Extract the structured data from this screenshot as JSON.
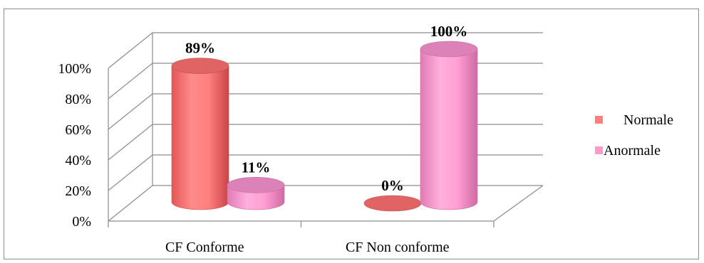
{
  "chart_data": {
    "type": "bar",
    "title": "",
    "xlabel": "",
    "ylabel": "",
    "ylim": [
      0,
      100
    ],
    "yticks": [
      "0%",
      "20%",
      "40%",
      "60%",
      "80%",
      "100%"
    ],
    "categories": [
      "CF Conforme",
      "CF Non conforme"
    ],
    "series": [
      {
        "name": "Normale",
        "values": [
          89,
          0
        ],
        "labels": [
          "89%",
          "0%"
        ],
        "color": "#FF7F7F"
      },
      {
        "name": "Anormale",
        "values": [
          11,
          100
        ],
        "labels": [
          "11%",
          "100%"
        ],
        "color": "#FF99CC"
      }
    ],
    "grid": true,
    "legend_position": "right",
    "style": "3d-cylinder"
  }
}
